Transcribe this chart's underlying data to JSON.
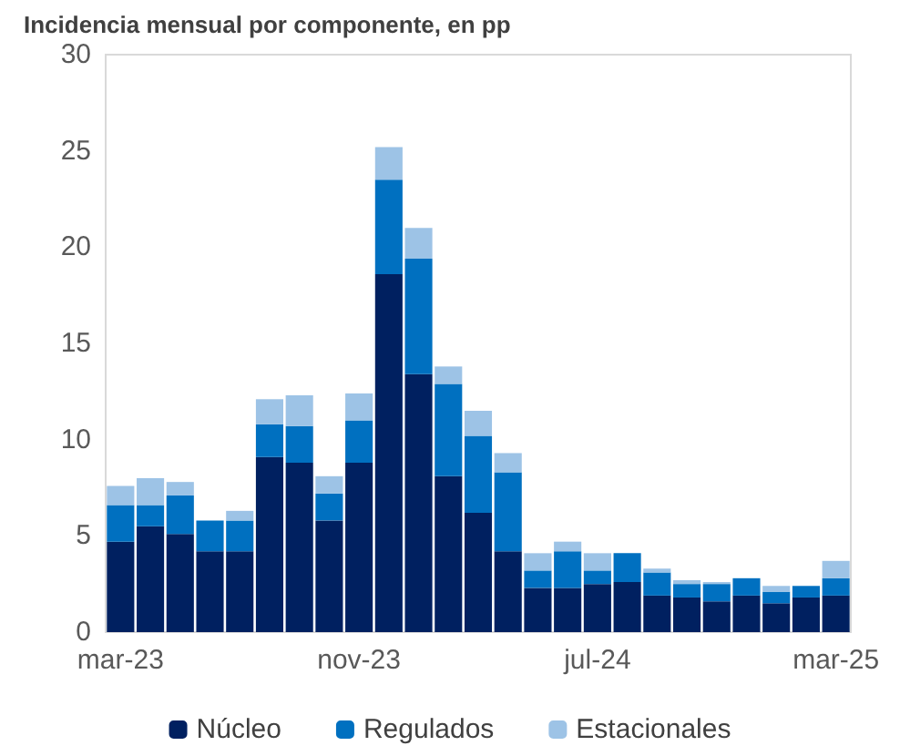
{
  "chart_data": {
    "type": "bar",
    "title": "Incidencia mensual por componente, en pp",
    "stacked": true,
    "categories": [
      "mar-23",
      null,
      null,
      null,
      null,
      null,
      null,
      null,
      "nov-23",
      null,
      null,
      null,
      null,
      null,
      null,
      null,
      "jul-24",
      null,
      null,
      null,
      null,
      null,
      null,
      null,
      "mar-25"
    ],
    "series": [
      {
        "name": "Núcleo",
        "color": "#002060",
        "values": [
          4.7,
          5.5,
          5.1,
          4.2,
          4.2,
          9.1,
          8.8,
          5.8,
          8.8,
          18.6,
          13.4,
          8.1,
          6.2,
          4.2,
          2.3,
          2.3,
          2.5,
          2.6,
          1.9,
          1.8,
          1.6,
          1.9,
          1.5,
          1.8,
          1.9
        ]
      },
      {
        "name": "Regulados",
        "color": "#0070c0",
        "values": [
          1.9,
          1.1,
          2.0,
          1.6,
          1.6,
          1.7,
          1.9,
          1.4,
          2.2,
          4.9,
          6.0,
          4.8,
          4.0,
          4.1,
          0.9,
          1.9,
          0.7,
          1.5,
          1.2,
          0.7,
          0.9,
          0.9,
          0.6,
          0.6,
          0.9
        ]
      },
      {
        "name": "Estacionales",
        "color": "#9dc3e6",
        "values": [
          1.0,
          1.4,
          0.7,
          0,
          0.5,
          1.3,
          1.6,
          0.9,
          1.4,
          1.7,
          1.6,
          0.9,
          1.3,
          1.0,
          0.9,
          0.5,
          0.9,
          0,
          0.2,
          0.2,
          0.1,
          0,
          0.3,
          0,
          0.9
        ]
      }
    ],
    "ylim": [
      0,
      30
    ],
    "yticks": [
      0,
      5,
      10,
      15,
      20,
      25,
      30
    ],
    "grid": false,
    "legend": "bottom"
  }
}
